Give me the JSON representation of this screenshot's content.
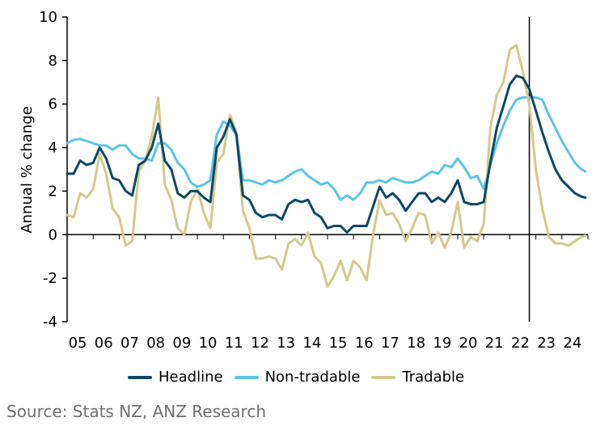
{
  "chart_data": {
    "type": "line",
    "title": "",
    "xlabel": "",
    "ylabel": "Annual % change",
    "ylim": [
      -4,
      10
    ],
    "yticks": [
      "-4",
      "-2",
      "0",
      "2",
      "4",
      "6",
      "8",
      "10"
    ],
    "xlim": [
      2005,
      2024.9
    ],
    "xticks": [
      "05",
      "06",
      "07",
      "08",
      "09",
      "10",
      "11",
      "12",
      "13",
      "14",
      "15",
      "16",
      "17",
      "18",
      "19",
      "20",
      "21",
      "22",
      "23",
      "24"
    ],
    "vline_x": 2022.75,
    "grid": false,
    "legend_position": "bottom",
    "series": [
      {
        "name": "Headline",
        "color": "#0d4766",
        "points": [
          [
            2005.0,
            2.8
          ],
          [
            2005.25,
            2.8
          ],
          [
            2005.5,
            3.4
          ],
          [
            2005.75,
            3.2
          ],
          [
            2006.0,
            3.3
          ],
          [
            2006.25,
            4.0
          ],
          [
            2006.5,
            3.5
          ],
          [
            2006.75,
            2.6
          ],
          [
            2007.0,
            2.5
          ],
          [
            2007.25,
            2.0
          ],
          [
            2007.5,
            1.8
          ],
          [
            2007.75,
            3.2
          ],
          [
            2008.0,
            3.4
          ],
          [
            2008.25,
            4.0
          ],
          [
            2008.5,
            5.1
          ],
          [
            2008.75,
            3.4
          ],
          [
            2009.0,
            3.0
          ],
          [
            2009.25,
            1.9
          ],
          [
            2009.5,
            1.7
          ],
          [
            2009.75,
            2.0
          ],
          [
            2010.0,
            2.0
          ],
          [
            2010.25,
            1.7
          ],
          [
            2010.5,
            1.5
          ],
          [
            2010.75,
            4.0
          ],
          [
            2011.0,
            4.5
          ],
          [
            2011.25,
            5.3
          ],
          [
            2011.5,
            4.6
          ],
          [
            2011.75,
            1.8
          ],
          [
            2012.0,
            1.6
          ],
          [
            2012.25,
            1.0
          ],
          [
            2012.5,
            0.8
          ],
          [
            2012.75,
            0.9
          ],
          [
            2013.0,
            0.9
          ],
          [
            2013.25,
            0.7
          ],
          [
            2013.5,
            1.4
          ],
          [
            2013.75,
            1.6
          ],
          [
            2014.0,
            1.5
          ],
          [
            2014.25,
            1.6
          ],
          [
            2014.5,
            1.0
          ],
          [
            2014.75,
            0.8
          ],
          [
            2015.0,
            0.3
          ],
          [
            2015.25,
            0.4
          ],
          [
            2015.5,
            0.4
          ],
          [
            2015.75,
            0.1
          ],
          [
            2016.0,
            0.4
          ],
          [
            2016.25,
            0.4
          ],
          [
            2016.5,
            0.4
          ],
          [
            2016.75,
            1.3
          ],
          [
            2017.0,
            2.2
          ],
          [
            2017.25,
            1.7
          ],
          [
            2017.5,
            1.9
          ],
          [
            2017.75,
            1.6
          ],
          [
            2018.0,
            1.1
          ],
          [
            2018.25,
            1.5
          ],
          [
            2018.5,
            1.9
          ],
          [
            2018.75,
            1.9
          ],
          [
            2019.0,
            1.5
          ],
          [
            2019.25,
            1.7
          ],
          [
            2019.5,
            1.5
          ],
          [
            2019.75,
            1.9
          ],
          [
            2020.0,
            2.5
          ],
          [
            2020.25,
            1.5
          ],
          [
            2020.5,
            1.4
          ],
          [
            2020.75,
            1.4
          ],
          [
            2021.0,
            1.5
          ],
          [
            2021.25,
            3.3
          ],
          [
            2021.5,
            4.9
          ],
          [
            2021.75,
            5.9
          ],
          [
            2022.0,
            6.9
          ],
          [
            2022.25,
            7.3
          ],
          [
            2022.5,
            7.2
          ],
          [
            2022.75,
            6.7
          ],
          [
            2023.0,
            5.7
          ],
          [
            2023.25,
            4.7
          ],
          [
            2023.5,
            3.8
          ],
          [
            2023.75,
            3.0
          ],
          [
            2024.0,
            2.5
          ],
          [
            2024.25,
            2.2
          ],
          [
            2024.5,
            1.9
          ],
          [
            2024.75,
            1.75
          ],
          [
            2024.9,
            1.7
          ]
        ]
      },
      {
        "name": "Non-tradable",
        "color": "#5bc4e6",
        "points": [
          [
            2005.0,
            4.2
          ],
          [
            2005.25,
            4.35
          ],
          [
            2005.5,
            4.4
          ],
          [
            2005.75,
            4.3
          ],
          [
            2006.0,
            4.2
          ],
          [
            2006.25,
            4.1
          ],
          [
            2006.5,
            4.1
          ],
          [
            2006.75,
            3.9
          ],
          [
            2007.0,
            4.1
          ],
          [
            2007.25,
            4.1
          ],
          [
            2007.5,
            3.7
          ],
          [
            2007.75,
            3.5
          ],
          [
            2008.0,
            3.5
          ],
          [
            2008.25,
            3.4
          ],
          [
            2008.5,
            4.2
          ],
          [
            2008.75,
            4.2
          ],
          [
            2009.0,
            3.9
          ],
          [
            2009.25,
            3.3
          ],
          [
            2009.5,
            3.0
          ],
          [
            2009.75,
            2.4
          ],
          [
            2010.0,
            2.2
          ],
          [
            2010.25,
            2.3
          ],
          [
            2010.5,
            2.5
          ],
          [
            2010.75,
            4.6
          ],
          [
            2011.0,
            5.2
          ],
          [
            2011.25,
            5.0
          ],
          [
            2011.5,
            4.6
          ],
          [
            2011.75,
            2.5
          ],
          [
            2012.0,
            2.5
          ],
          [
            2012.25,
            2.4
          ],
          [
            2012.5,
            2.3
          ],
          [
            2012.75,
            2.5
          ],
          [
            2013.0,
            2.4
          ],
          [
            2013.25,
            2.5
          ],
          [
            2013.5,
            2.7
          ],
          [
            2013.75,
            2.9
          ],
          [
            2014.0,
            3.0
          ],
          [
            2014.25,
            2.7
          ],
          [
            2014.5,
            2.5
          ],
          [
            2014.75,
            2.3
          ],
          [
            2015.0,
            2.4
          ],
          [
            2015.25,
            2.1
          ],
          [
            2015.5,
            1.6
          ],
          [
            2015.75,
            1.8
          ],
          [
            2016.0,
            1.6
          ],
          [
            2016.25,
            1.9
          ],
          [
            2016.5,
            2.4
          ],
          [
            2016.75,
            2.4
          ],
          [
            2017.0,
            2.5
          ],
          [
            2017.25,
            2.4
          ],
          [
            2017.5,
            2.6
          ],
          [
            2017.75,
            2.5
          ],
          [
            2018.0,
            2.4
          ],
          [
            2018.25,
            2.4
          ],
          [
            2018.5,
            2.5
          ],
          [
            2018.75,
            2.7
          ],
          [
            2019.0,
            2.9
          ],
          [
            2019.25,
            2.8
          ],
          [
            2019.5,
            3.2
          ],
          [
            2019.75,
            3.1
          ],
          [
            2020.0,
            3.5
          ],
          [
            2020.25,
            3.1
          ],
          [
            2020.5,
            2.6
          ],
          [
            2020.75,
            2.7
          ],
          [
            2021.0,
            2.1
          ],
          [
            2021.25,
            3.2
          ],
          [
            2021.5,
            4.2
          ],
          [
            2021.75,
            5.0
          ],
          [
            2022.0,
            5.7
          ],
          [
            2022.25,
            6.2
          ],
          [
            2022.5,
            6.3
          ],
          [
            2022.75,
            6.3
          ],
          [
            2023.0,
            6.3
          ],
          [
            2023.25,
            6.2
          ],
          [
            2023.5,
            5.5
          ],
          [
            2023.75,
            4.9
          ],
          [
            2024.0,
            4.3
          ],
          [
            2024.25,
            3.8
          ],
          [
            2024.5,
            3.3
          ],
          [
            2024.75,
            3.0
          ],
          [
            2024.9,
            2.9
          ]
        ]
      },
      {
        "name": "Tradable",
        "color": "#d2c98b",
        "points": [
          [
            2005.0,
            0.9
          ],
          [
            2005.25,
            0.8
          ],
          [
            2005.5,
            1.9
          ],
          [
            2005.75,
            1.7
          ],
          [
            2006.0,
            2.1
          ],
          [
            2006.25,
            3.7
          ],
          [
            2006.5,
            2.8
          ],
          [
            2006.75,
            1.2
          ],
          [
            2007.0,
            0.8
          ],
          [
            2007.25,
            -0.5
          ],
          [
            2007.5,
            -0.3
          ],
          [
            2007.75,
            2.9
          ],
          [
            2008.0,
            3.4
          ],
          [
            2008.25,
            4.5
          ],
          [
            2008.5,
            6.3
          ],
          [
            2008.75,
            2.3
          ],
          [
            2009.0,
            1.6
          ],
          [
            2009.25,
            0.3
          ],
          [
            2009.5,
            0.0
          ],
          [
            2009.75,
            1.5
          ],
          [
            2010.0,
            2.1
          ],
          [
            2010.25,
            1.0
          ],
          [
            2010.5,
            0.3
          ],
          [
            2010.75,
            3.3
          ],
          [
            2011.0,
            3.7
          ],
          [
            2011.25,
            5.5
          ],
          [
            2011.5,
            4.7
          ],
          [
            2011.75,
            1.1
          ],
          [
            2012.0,
            0.3
          ],
          [
            2012.25,
            -1.1
          ],
          [
            2012.5,
            -1.1
          ],
          [
            2012.75,
            -1.0
          ],
          [
            2013.0,
            -1.1
          ],
          [
            2013.25,
            -1.6
          ],
          [
            2013.5,
            -0.4
          ],
          [
            2013.75,
            -0.2
          ],
          [
            2014.0,
            -0.5
          ],
          [
            2014.25,
            0.1
          ],
          [
            2014.5,
            -1.0
          ],
          [
            2014.75,
            -1.3
          ],
          [
            2015.0,
            -2.4
          ],
          [
            2015.25,
            -1.9
          ],
          [
            2015.5,
            -1.2
          ],
          [
            2015.75,
            -2.1
          ],
          [
            2016.0,
            -1.2
          ],
          [
            2016.25,
            -1.5
          ],
          [
            2016.5,
            -2.1
          ],
          [
            2016.75,
            0.0
          ],
          [
            2017.0,
            1.6
          ],
          [
            2017.25,
            0.9
          ],
          [
            2017.5,
            1.0
          ],
          [
            2017.75,
            0.5
          ],
          [
            2018.0,
            -0.3
          ],
          [
            2018.25,
            0.3
          ],
          [
            2018.5,
            1.0
          ],
          [
            2018.75,
            0.9
          ],
          [
            2019.0,
            -0.4
          ],
          [
            2019.25,
            0.1
          ],
          [
            2019.5,
            -0.6
          ],
          [
            2019.75,
            0.1
          ],
          [
            2020.0,
            1.5
          ],
          [
            2020.25,
            -0.6
          ],
          [
            2020.5,
            -0.1
          ],
          [
            2020.75,
            -0.3
          ],
          [
            2021.0,
            0.5
          ],
          [
            2021.25,
            4.9
          ],
          [
            2021.5,
            6.4
          ],
          [
            2021.75,
            7.0
          ],
          [
            2022.0,
            8.5
          ],
          [
            2022.25,
            8.7
          ],
          [
            2022.5,
            7.5
          ],
          [
            2022.75,
            6.0
          ],
          [
            2023.0,
            3.0
          ],
          [
            2023.25,
            1.2
          ],
          [
            2023.5,
            -0.1
          ],
          [
            2023.75,
            -0.4
          ],
          [
            2024.0,
            -0.4
          ],
          [
            2024.25,
            -0.5
          ],
          [
            2024.5,
            -0.3
          ],
          [
            2024.75,
            -0.1
          ],
          [
            2024.9,
            -0.05
          ]
        ]
      }
    ]
  },
  "legend": {
    "headline": "Headline",
    "non_tradable": "Non-tradable",
    "tradable": "Tradable"
  },
  "source": "Source: Stats NZ, ANZ Research"
}
